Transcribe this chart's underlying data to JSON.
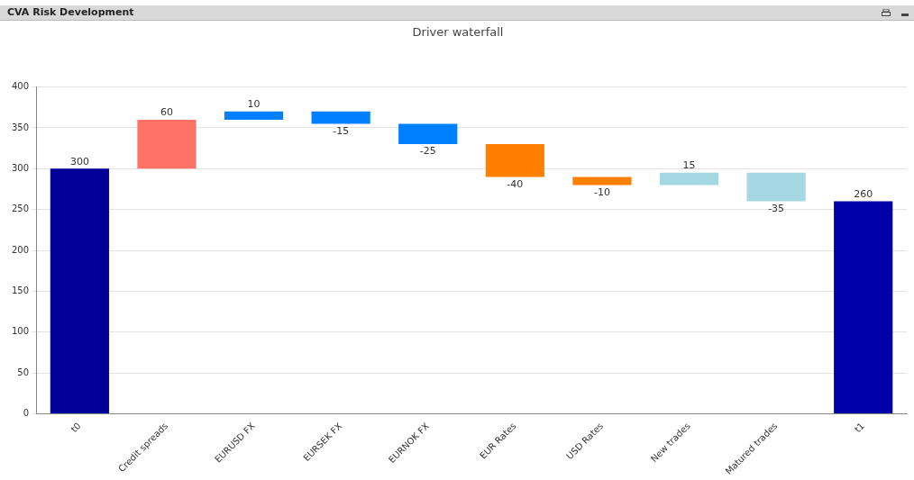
{
  "chart_data": {
    "type": "bar",
    "title": "Driver waterfall",
    "annotations": [
      "CVA Risk Development"
    ],
    "categories": [
      "t0",
      "Credit spreads",
      "EURUSD FX",
      "EURSEK FX",
      "EURNOK FX",
      "EUR Rates",
      "USD Rates",
      "New trades",
      "Matured trades",
      "t1"
    ],
    "values": [
      300,
      60,
      10,
      -15,
      -25,
      -40,
      -10,
      15,
      -35,
      260
    ],
    "base": [
      0,
      300,
      360,
      370,
      355,
      330,
      290,
      280,
      295,
      0
    ],
    "colors": [
      "#000099",
      "#ff7366",
      "#0080ff",
      "#0080ff",
      "#0080ff",
      "#ff8000",
      "#ff8000",
      "#a6d8e3",
      "#a6d8e3",
      "#0000a8"
    ],
    "ylim": [
      0,
      400
    ],
    "yticks": [
      0,
      50,
      100,
      150,
      200,
      250,
      300,
      350,
      400
    ],
    "grid": "y",
    "data_labels": true
  }
}
